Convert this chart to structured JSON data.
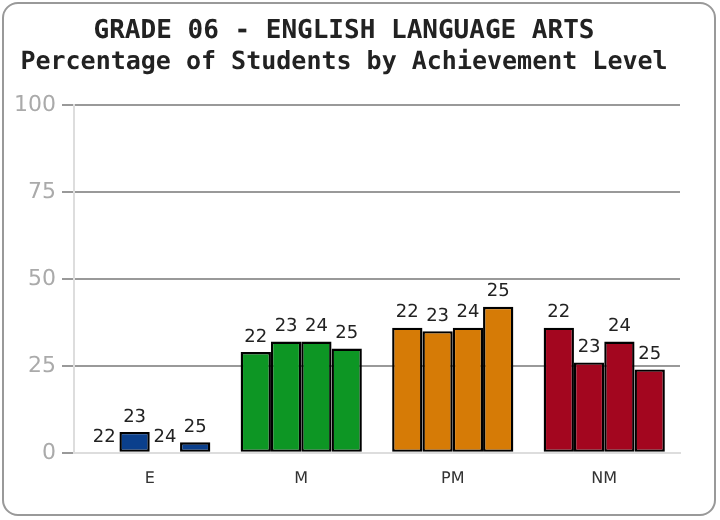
{
  "chart_data": {
    "type": "bar",
    "title": "GRADE 06 - ENGLISH LANGUAGE ARTS",
    "subtitle": "Percentage of Students by Achievement Level",
    "categories": [
      "E",
      "M",
      "PM",
      "NM"
    ],
    "series": [
      {
        "name": "22",
        "colors": [
          "#0a3f8c",
          "#0d9624",
          "#d67b06",
          "#a3061f"
        ],
        "values": [
          0,
          29,
          36,
          36
        ]
      },
      {
        "name": "23",
        "colors": [
          "#0a3f8c",
          "#0d9624",
          "#d67b06",
          "#a3061f"
        ],
        "values": [
          6,
          32,
          35,
          26
        ]
      },
      {
        "name": "24",
        "colors": [
          "#0a3f8c",
          "#0d9624",
          "#d67b06",
          "#a3061f"
        ],
        "values": [
          0,
          32,
          36,
          32
        ]
      },
      {
        "name": "25",
        "colors": [
          "#0a3f8c",
          "#0d9624",
          "#d67b06",
          "#a3061f"
        ],
        "values": [
          3,
          30,
          42,
          24
        ]
      }
    ],
    "ylim": [
      0,
      100
    ],
    "yticks": [
      0,
      25,
      50,
      75,
      100
    ],
    "grid": "y",
    "legend": false
  }
}
